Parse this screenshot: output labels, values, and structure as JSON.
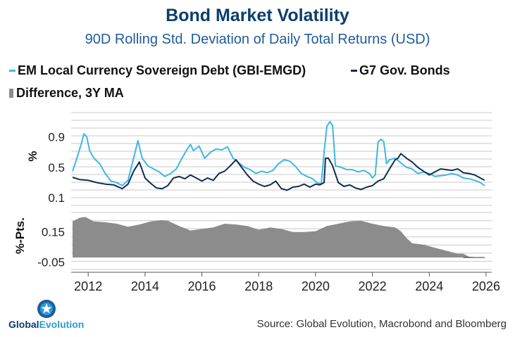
{
  "title": "Bond Market Volatility",
  "subtitle": "90D Rolling Std. Deviation of Daily Total Returns (USD)",
  "legend": {
    "em": "EM Local Currency Sovereign Debt (GBI-EMGD)",
    "g7": "G7 Gov. Bonds",
    "diff": "Difference, 3Y MA"
  },
  "source": "Source: Global Evolution, Macrobond and Bloomberg",
  "logo": {
    "part1": "Global",
    "part2": "Evolution"
  },
  "colors": {
    "em": "#3db8e0",
    "g7": "#0d2d56",
    "diff": "#8c8c8c",
    "title": "#0b3d6e",
    "subtitle": "#1f5c99",
    "grid": "#c8c8c8"
  },
  "chart_data": [
    {
      "type": "line",
      "title": "Bond Market Volatility",
      "ylabel": "%",
      "ylim": [
        0,
        1.22
      ],
      "yticks": [
        0.1,
        0.5,
        0.9
      ],
      "ytick_labels": [
        "0.1",
        "0.5",
        "0.9"
      ],
      "xlim": [
        2011.4,
        2026.2
      ],
      "xticks": [
        2012,
        2014,
        2016,
        2018,
        2020,
        2022,
        2024,
        2026
      ],
      "xtick_labels": [
        "2012",
        "2014",
        "2016",
        "2018",
        "2020",
        "2022",
        "2024",
        "2026"
      ],
      "series": [
        {
          "name": "EM Local Currency Sovereign Debt (GBI-EMGD)",
          "x": [
            2011.45,
            2011.6,
            2011.75,
            2011.85,
            2011.95,
            2012.05,
            2012.2,
            2012.4,
            2012.6,
            2012.8,
            2013.0,
            2013.2,
            2013.4,
            2013.55,
            2013.65,
            2013.75,
            2013.9,
            2014.1,
            2014.3,
            2014.5,
            2014.7,
            2014.9,
            2015.1,
            2015.3,
            2015.5,
            2015.6,
            2015.7,
            2015.9,
            2016.1,
            2016.3,
            2016.5,
            2016.7,
            2016.9,
            2017.1,
            2017.3,
            2017.5,
            2017.7,
            2017.9,
            2018.1,
            2018.3,
            2018.5,
            2018.7,
            2018.9,
            2019.1,
            2019.3,
            2019.5,
            2019.7,
            2019.9,
            2020.05,
            2020.2,
            2020.3,
            2020.4,
            2020.5,
            2020.6,
            2020.7,
            2020.9,
            2021.1,
            2021.3,
            2021.5,
            2021.7,
            2021.9,
            2022.0,
            2022.1,
            2022.2,
            2022.3,
            2022.4,
            2022.5,
            2022.6,
            2022.8,
            2023.0,
            2023.2,
            2023.4,
            2023.6,
            2023.8,
            2024.0,
            2024.2,
            2024.4,
            2024.6,
            2024.8,
            2025.0,
            2025.2,
            2025.4,
            2025.6,
            2025.8,
            2025.95
          ],
          "values": [
            0.45,
            0.62,
            0.8,
            0.94,
            0.9,
            0.72,
            0.62,
            0.55,
            0.42,
            0.32,
            0.3,
            0.26,
            0.33,
            0.55,
            0.7,
            0.85,
            0.62,
            0.52,
            0.48,
            0.44,
            0.38,
            0.42,
            0.48,
            0.62,
            0.75,
            0.8,
            0.72,
            0.78,
            0.62,
            0.7,
            0.74,
            0.73,
            0.77,
            0.62,
            0.56,
            0.5,
            0.47,
            0.42,
            0.45,
            0.43,
            0.46,
            0.55,
            0.6,
            0.58,
            0.51,
            0.42,
            0.38,
            0.35,
            0.3,
            0.28,
            0.7,
            1.04,
            1.1,
            1.05,
            0.52,
            0.5,
            0.47,
            0.47,
            0.44,
            0.46,
            0.42,
            0.36,
            0.4,
            0.83,
            0.87,
            0.84,
            0.55,
            0.6,
            0.62,
            0.56,
            0.5,
            0.48,
            0.42,
            0.44,
            0.42,
            0.38,
            0.39,
            0.4,
            0.42,
            0.4,
            0.36,
            0.35,
            0.33,
            0.3,
            0.26
          ]
        },
        {
          "name": "G7 Gov. Bonds",
          "x": [
            2011.45,
            2011.7,
            2012.0,
            2012.3,
            2012.6,
            2012.9,
            2013.2,
            2013.4,
            2013.6,
            2013.8,
            2014.0,
            2014.2,
            2014.4,
            2014.6,
            2014.8,
            2015.0,
            2015.2,
            2015.4,
            2015.6,
            2015.8,
            2016.0,
            2016.2,
            2016.4,
            2016.6,
            2016.8,
            2017.0,
            2017.2,
            2017.4,
            2017.6,
            2017.8,
            2018.0,
            2018.2,
            2018.4,
            2018.6,
            2018.8,
            2019.0,
            2019.2,
            2019.4,
            2019.6,
            2019.8,
            2020.0,
            2020.15,
            2020.3,
            2020.35,
            2020.45,
            2020.6,
            2020.8,
            2021.0,
            2021.2,
            2021.4,
            2021.6,
            2021.8,
            2022.0,
            2022.2,
            2022.4,
            2022.6,
            2022.8,
            2022.9,
            2023.0,
            2023.2,
            2023.4,
            2023.6,
            2023.8,
            2024.0,
            2024.2,
            2024.4,
            2024.6,
            2024.8,
            2025.0,
            2025.2,
            2025.4,
            2025.6,
            2025.8,
            2025.95
          ],
          "values": [
            0.37,
            0.34,
            0.33,
            0.3,
            0.28,
            0.27,
            0.22,
            0.28,
            0.45,
            0.57,
            0.36,
            0.29,
            0.23,
            0.22,
            0.26,
            0.36,
            0.38,
            0.35,
            0.4,
            0.36,
            0.32,
            0.36,
            0.33,
            0.42,
            0.45,
            0.52,
            0.6,
            0.5,
            0.4,
            0.32,
            0.28,
            0.25,
            0.27,
            0.32,
            0.22,
            0.2,
            0.24,
            0.25,
            0.28,
            0.24,
            0.28,
            0.27,
            0.3,
            0.62,
            0.62,
            0.52,
            0.3,
            0.25,
            0.27,
            0.23,
            0.21,
            0.24,
            0.26,
            0.32,
            0.35,
            0.48,
            0.6,
            0.62,
            0.68,
            0.62,
            0.57,
            0.5,
            0.45,
            0.4,
            0.44,
            0.48,
            0.47,
            0.46,
            0.48,
            0.43,
            0.42,
            0.4,
            0.36,
            0.33
          ]
        }
      ]
    },
    {
      "type": "area",
      "ylabel": "%-Pts.",
      "ylim": [
        -0.1,
        0.28
      ],
      "yticks": [
        -0.05,
        0.15
      ],
      "ytick_labels": [
        "-0.05",
        "0.15"
      ],
      "xlim": [
        2011.4,
        2026.2
      ],
      "series": [
        {
          "name": "Difference, 3Y MA",
          "x": [
            2011.45,
            2011.7,
            2011.9,
            2012.2,
            2012.6,
            2013.0,
            2013.4,
            2013.8,
            2014.2,
            2014.6,
            2014.8,
            2015.2,
            2015.6,
            2016.0,
            2016.4,
            2016.8,
            2017.2,
            2017.6,
            2018.0,
            2018.4,
            2018.8,
            2019.2,
            2019.6,
            2020.0,
            2020.4,
            2020.8,
            2021.2,
            2021.6,
            2022.0,
            2022.4,
            2022.8,
            2023.0,
            2023.2,
            2023.4,
            2023.8,
            2024.2,
            2024.6,
            2025.0,
            2025.2,
            2025.4,
            2025.7,
            2025.95
          ],
          "values": [
            0.22,
            0.245,
            0.25,
            0.22,
            0.215,
            0.205,
            0.185,
            0.2,
            0.22,
            0.23,
            0.225,
            0.19,
            0.16,
            0.17,
            0.18,
            0.205,
            0.2,
            0.19,
            0.165,
            0.18,
            0.17,
            0.15,
            0.15,
            0.155,
            0.19,
            0.205,
            0.22,
            0.225,
            0.205,
            0.19,
            0.18,
            0.155,
            0.11,
            0.075,
            0.065,
            0.045,
            0.025,
            0.005,
            0.005,
            -0.015,
            -0.02,
            -0.02
          ]
        }
      ]
    }
  ]
}
